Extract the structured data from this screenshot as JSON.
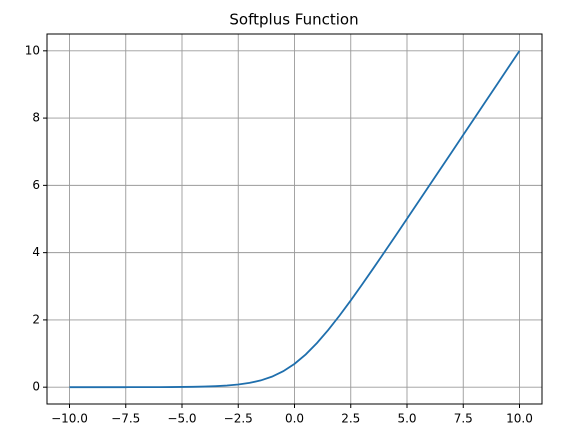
{
  "chart_data": {
    "type": "line",
    "title": "Softplus Function",
    "x": [
      -10,
      -9.5,
      -9,
      -8.5,
      -8,
      -7.5,
      -7,
      -6.5,
      -6,
      -5.5,
      -5,
      -4.5,
      -4,
      -3.5,
      -3,
      -2.5,
      -2,
      -1.5,
      -1,
      -0.5,
      0,
      0.5,
      1,
      1.5,
      2,
      2.5,
      3,
      3.5,
      4,
      4.5,
      5,
      5.5,
      6,
      6.5,
      7,
      7.5,
      8,
      8.5,
      9,
      9.5,
      10
    ],
    "series": [
      {
        "color": "#1f6fad",
        "values": [
          5e-05,
          8e-05,
          0.00012,
          0.0002,
          0.00034,
          0.00055,
          0.00091,
          0.0015,
          0.0025,
          0.0041,
          0.0067,
          0.011,
          0.018,
          0.03,
          0.049,
          0.079,
          0.127,
          0.201,
          0.313,
          0.474,
          0.693,
          0.974,
          1.313,
          1.701,
          2.127,
          2.579,
          3.049,
          3.53,
          4.018,
          4.511,
          5.007,
          5.504,
          6.002,
          6.502,
          7.001,
          7.501,
          8.0,
          8.5,
          9.0,
          9.5,
          10.0
        ]
      }
    ],
    "xlim": [
      -11,
      11
    ],
    "ylim": [
      -0.5,
      10.5
    ],
    "xticks": [
      {
        "value": -10,
        "label": "−10.0"
      },
      {
        "value": -7.5,
        "label": "−7.5"
      },
      {
        "value": -5,
        "label": "−5.0"
      },
      {
        "value": -2.5,
        "label": "−2.5"
      },
      {
        "value": 0,
        "label": "0.0"
      },
      {
        "value": 2.5,
        "label": "2.5"
      },
      {
        "value": 5,
        "label": "5.0"
      },
      {
        "value": 7.5,
        "label": "7.5"
      },
      {
        "value": 10,
        "label": "10.0"
      }
    ],
    "yticks": [
      0,
      2,
      4,
      6,
      8,
      10
    ],
    "grid": true
  }
}
